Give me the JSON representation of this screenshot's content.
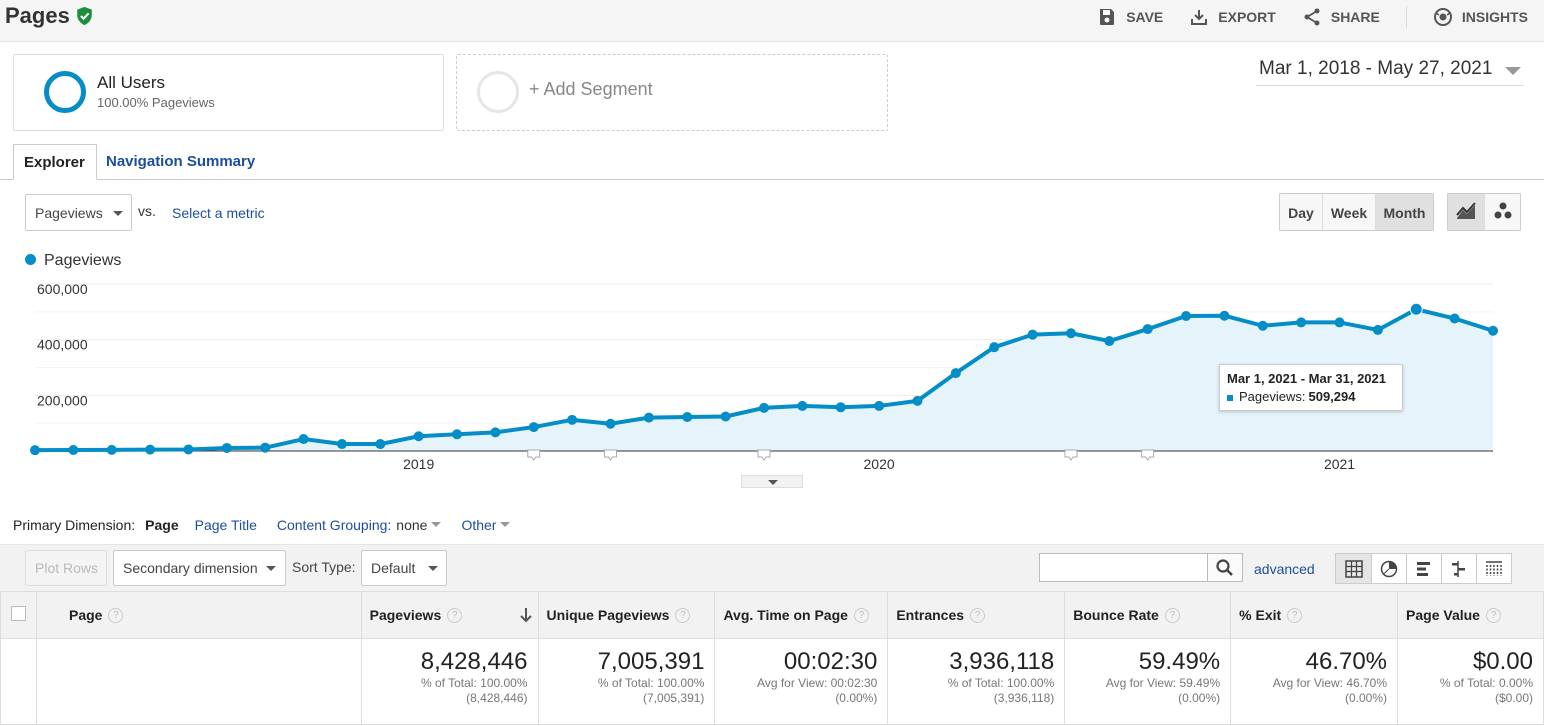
{
  "header": {
    "title": "Pages",
    "actions": {
      "save": "SAVE",
      "export": "EXPORT",
      "share": "SHARE",
      "insights": "INSIGHTS"
    }
  },
  "segments": {
    "active": {
      "name": "All Users",
      "sub": "100.00% Pageviews"
    },
    "add": "+ Add Segment"
  },
  "date_range": "Mar 1, 2018 - May 27, 2021",
  "tabs": {
    "explorer": "Explorer",
    "nav_summary": "Navigation Summary"
  },
  "metric_selector": {
    "value": "Pageviews",
    "vs": "vs.",
    "select_metric": "Select a metric"
  },
  "granularity": {
    "day": "Day",
    "week": "Week",
    "month": "Month",
    "selected": "Month"
  },
  "chart_data": {
    "type": "area",
    "series": [
      {
        "name": "Pageviews",
        "color": "#058dc7",
        "values": [
          3000,
          3500,
          4000,
          5000,
          5500,
          11000,
          12000,
          43000,
          25000,
          25000,
          53000,
          60000,
          67000,
          86000,
          112000,
          98000,
          120000,
          122000,
          124000,
          155000,
          162000,
          157000,
          162000,
          180000,
          280000,
          373000,
          418000,
          423000,
          395000,
          438000,
          485000,
          486000,
          450000,
          462000,
          462000,
          435000,
          509294,
          476000,
          432000
        ]
      }
    ],
    "months": [
      "2018-03",
      "2018-04",
      "2018-05",
      "2018-06",
      "2018-07",
      "2018-08",
      "2018-09",
      "2018-10",
      "2018-11",
      "2018-12",
      "2019-01",
      "2019-02",
      "2019-03",
      "2019-04",
      "2019-05",
      "2019-06",
      "2019-07",
      "2019-08",
      "2019-09",
      "2019-10",
      "2019-11",
      "2019-12",
      "2020-01",
      "2020-02",
      "2020-03",
      "2020-04",
      "2020-05",
      "2020-06",
      "2020-07",
      "2020-08",
      "2020-09",
      "2020-10",
      "2020-11",
      "2020-12",
      "2021-01",
      "2021-02",
      "2021-03",
      "2021-04",
      "2021-05"
    ],
    "y_ticks": [
      "600,000",
      "400,000",
      "200,000"
    ],
    "x_ticks": [
      {
        "label": "2019",
        "month_index": 10
      },
      {
        "label": "2020",
        "month_index": 22
      },
      {
        "label": "2021",
        "month_index": 34
      }
    ],
    "annotation_month_indices": [
      13,
      15,
      19,
      27,
      29
    ],
    "ylim": [
      0,
      600000
    ],
    "grid": true,
    "highlight_index": 36
  },
  "tooltip": {
    "range": "Mar 1, 2021 - Mar 31, 2021",
    "metric": "Pageviews:",
    "value": "509,294"
  },
  "dimensions": {
    "label": "Primary Dimension:",
    "page": "Page",
    "page_title": "Page Title",
    "content_grouping": "Content Grouping:",
    "content_grouping_value": "none",
    "other": "Other"
  },
  "table_toolbar": {
    "plot_rows": "Plot Rows",
    "secondary": "Secondary dimension",
    "sort_type_label": "Sort Type:",
    "sort_type": "Default",
    "advanced": "advanced"
  },
  "table": {
    "columns": [
      "Page",
      "Pageviews",
      "Unique Pageviews",
      "Avg. Time on Page",
      "Entrances",
      "Bounce Rate",
      "% Exit",
      "Page Value"
    ],
    "totals": [
      {
        "value": "8,428,446",
        "sub1": "% of Total: 100.00%",
        "sub2": "(8,428,446)"
      },
      {
        "value": "7,005,391",
        "sub1": "% of Total: 100.00%",
        "sub2": "(7,005,391)"
      },
      {
        "value": "00:02:30",
        "sub1": "Avg for View: 00:02:30",
        "sub2": "(0.00%)"
      },
      {
        "value": "3,936,118",
        "sub1": "% of Total: 100.00%",
        "sub2": "(3,936,118)"
      },
      {
        "value": "59.49%",
        "sub1": "Avg for View: 59.49%",
        "sub2": "(0.00%)"
      },
      {
        "value": "46.70%",
        "sub1": "Avg for View: 46.70%",
        "sub2": "(0.00%)"
      },
      {
        "value": "$0.00",
        "sub1": "% of Total: 0.00%",
        "sub2": "($0.00)"
      }
    ]
  }
}
